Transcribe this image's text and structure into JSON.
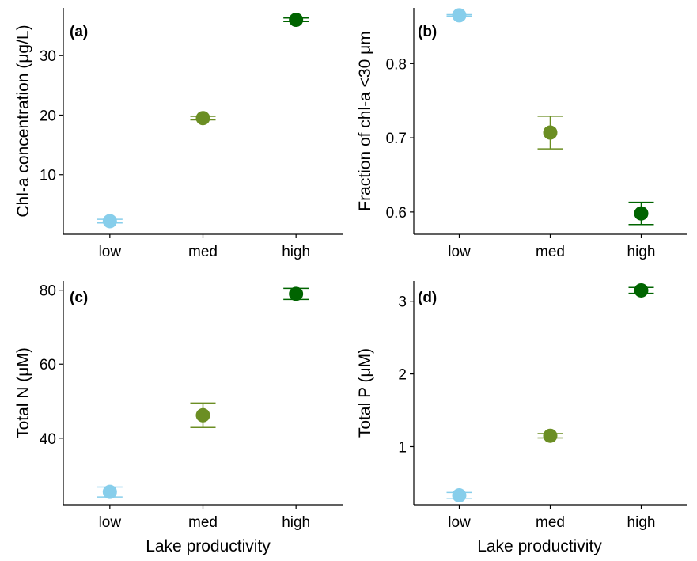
{
  "figure": {
    "xlabel": "Lake productivity"
  },
  "chart_data": [
    {
      "type": "scatter",
      "panel_label": "(a)",
      "title": "",
      "xlabel": "",
      "ylabel": "Chl-a concentration (μg/L)",
      "categories": [
        "low",
        "med",
        "high"
      ],
      "values": [
        2.2,
        19.5,
        36.0
      ],
      "error_low": [
        1.9,
        19.2,
        35.7
      ],
      "error_high": [
        2.5,
        19.8,
        36.3
      ],
      "colors": [
        "#87CEEB",
        "#6B8E23",
        "#006400"
      ],
      "ylim": [
        0,
        38
      ],
      "yticks": [
        10,
        20,
        30
      ],
      "ytick_labels": [
        "10",
        "20",
        "30"
      ],
      "grid": false,
      "legend": "none"
    },
    {
      "type": "scatter",
      "panel_label": "(b)",
      "title": "",
      "xlabel": "",
      "ylabel": "Fraction of chl-a <30 μm",
      "categories": [
        "low",
        "med",
        "high"
      ],
      "values": [
        0.865,
        0.707,
        0.598
      ],
      "error_low": [
        0.864,
        0.685,
        0.583
      ],
      "error_high": [
        0.866,
        0.729,
        0.613
      ],
      "colors": [
        "#87CEEB",
        "#6B8E23",
        "#006400"
      ],
      "ylim": [
        0.57,
        0.875
      ],
      "yticks": [
        0.6,
        0.7,
        0.8
      ],
      "ytick_labels": [
        "0.6",
        "0.7",
        "0.8"
      ],
      "grid": false,
      "legend": "none"
    },
    {
      "type": "scatter",
      "panel_label": "(c)",
      "title": "",
      "xlabel": "Lake productivity",
      "ylabel": "Total N (μM)",
      "categories": [
        "low",
        "med",
        "high"
      ],
      "values": [
        25.5,
        46.2,
        79.0
      ],
      "error_low": [
        24.1,
        42.9,
        77.5
      ],
      "error_high": [
        26.8,
        49.5,
        80.5
      ],
      "colors": [
        "#87CEEB",
        "#6B8E23",
        "#006400"
      ],
      "ylim": [
        22,
        82.5
      ],
      "yticks": [
        40,
        60,
        80
      ],
      "ytick_labels": [
        "40",
        "60",
        "80"
      ],
      "grid": false,
      "legend": "none"
    },
    {
      "type": "scatter",
      "panel_label": "(d)",
      "title": "",
      "xlabel": "Lake productivity",
      "ylabel": "Total P (μM)",
      "categories": [
        "low",
        "med",
        "high"
      ],
      "values": [
        0.33,
        1.15,
        3.15
      ],
      "error_low": [
        0.29,
        1.12,
        3.11
      ],
      "error_high": [
        0.37,
        1.18,
        3.19
      ],
      "colors": [
        "#87CEEB",
        "#6B8E23",
        "#006400"
      ],
      "ylim": [
        0.2,
        3.28
      ],
      "yticks": [
        1,
        2,
        3
      ],
      "ytick_labels": [
        "1",
        "2",
        "3"
      ],
      "grid": false,
      "legend": "none"
    }
  ]
}
